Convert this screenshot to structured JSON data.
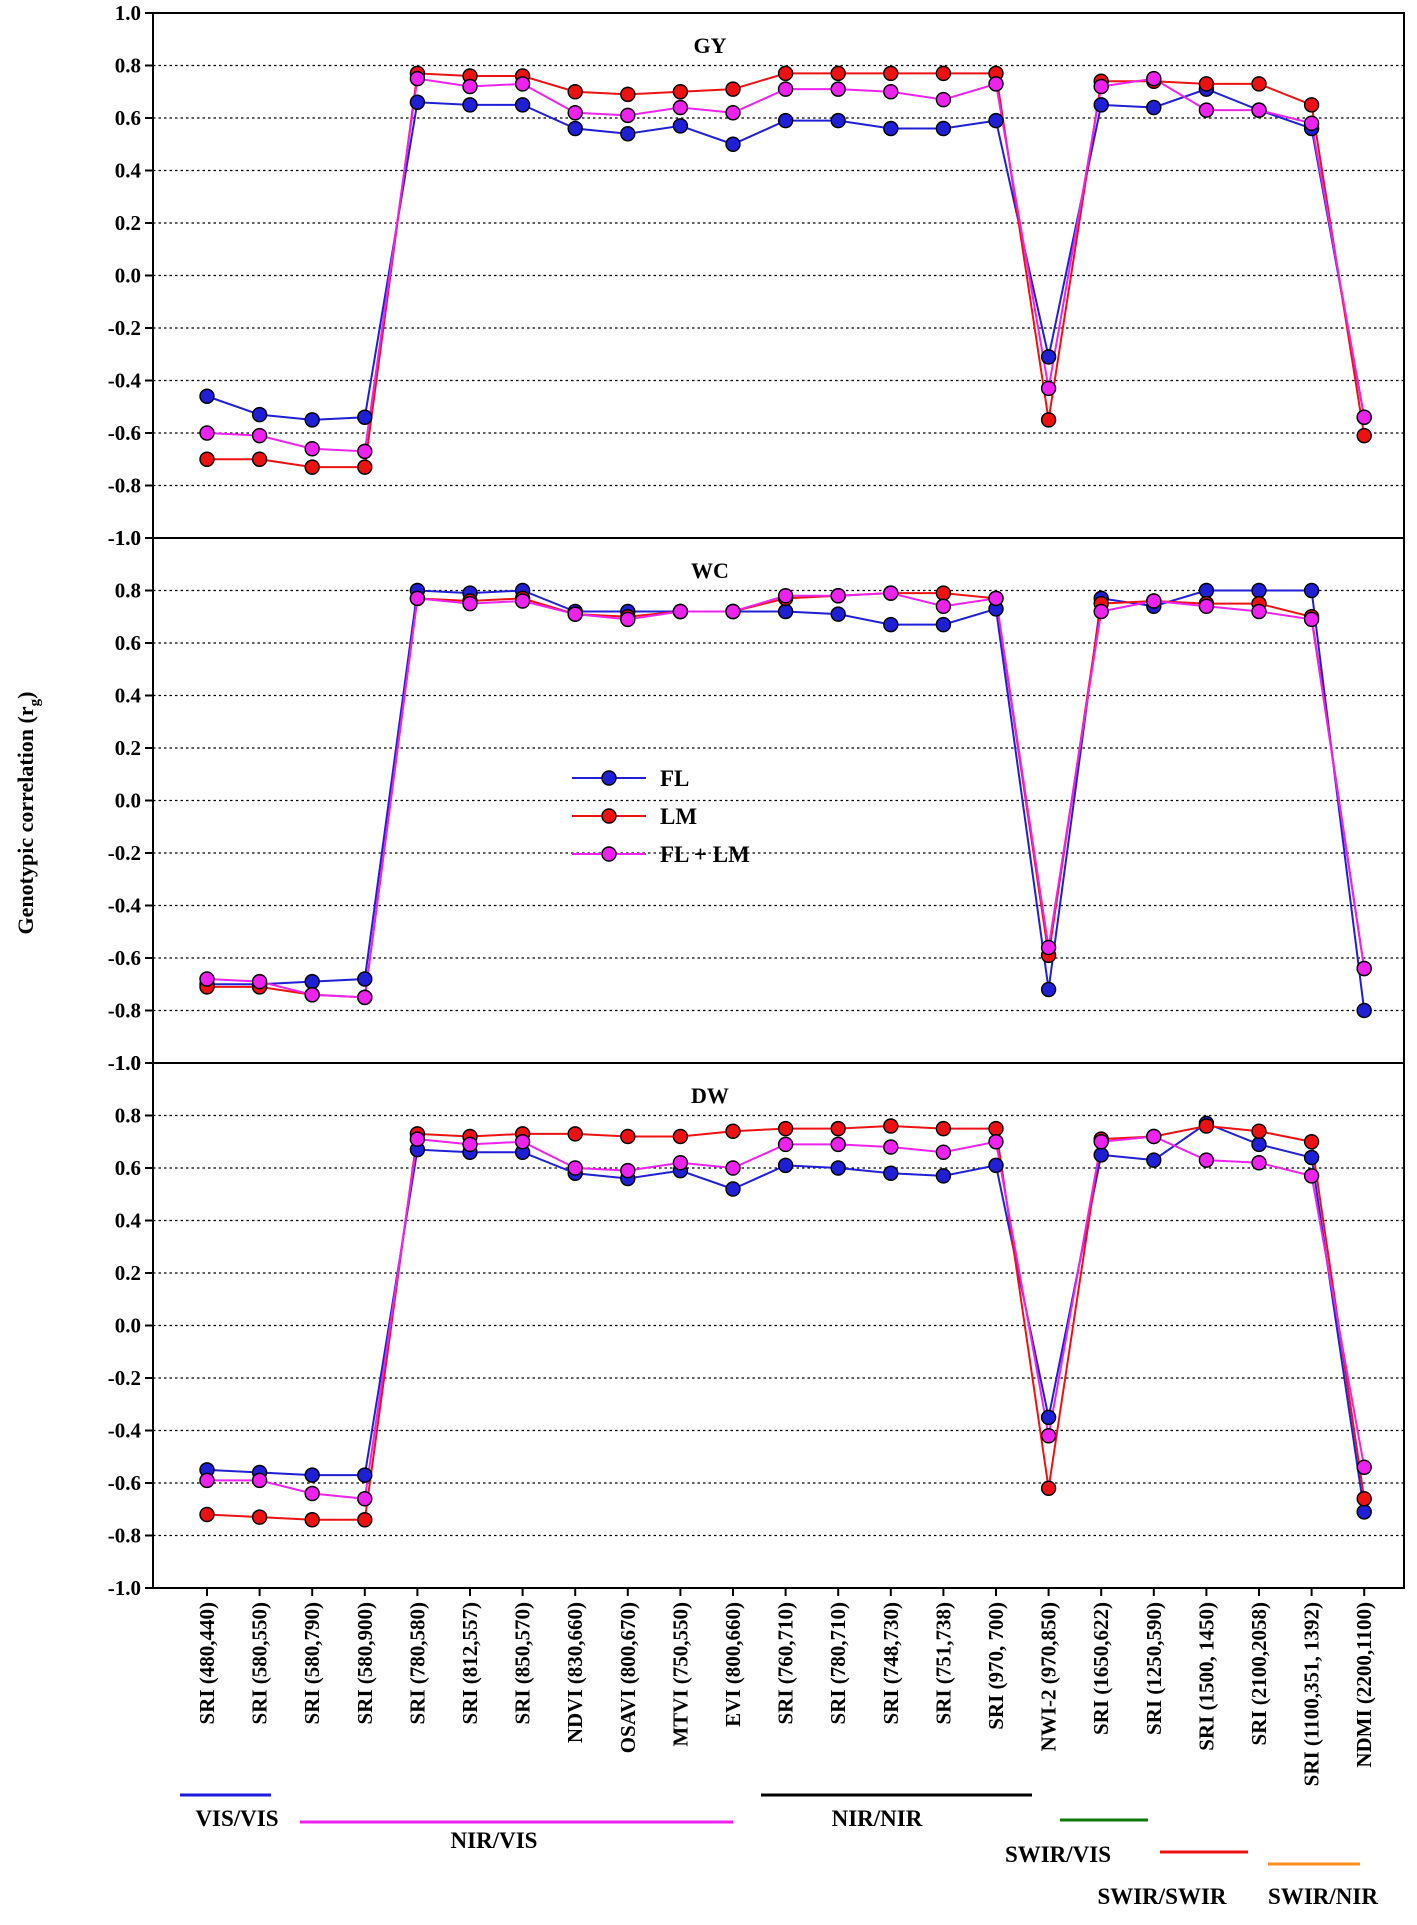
{
  "chart_data": {
    "type": "line",
    "ylabel": "Genotypic correlation (r",
    "ylabel_sub": "g",
    "ylabel_close": ")",
    "ylim": [
      -1.0,
      1.0
    ],
    "yticks": [
      "1.0",
      "0.8",
      "0.6",
      "0.4",
      "0.2",
      "0.0",
      "-0.2",
      "-0.4",
      "-0.6",
      "-0.8",
      "-1.0"
    ],
    "grid": true,
    "legend_position": "center",
    "categories": [
      "SRI (480,440)",
      "SRI (580,550)",
      "SRI (580,790)",
      "SRI (580,900)",
      "SRI (780,580)",
      "SRI (812,557)",
      "SRI (850,570)",
      "NDVI (830,660)",
      "OSAVI (800,670)",
      "MTVI (750,550)",
      "EVI (800,660)",
      "SRI (760,710)",
      "SRI (780,710)",
      "SRI (748,730)",
      "SRI (751,738)",
      "SRI (970, 700)",
      "NWI-2 (970,850)",
      "SRI (1650,622)",
      "SRI (1250,590)",
      "SRI (1500, 1450)",
      "SRI (2100,2058)",
      "SRI (1100,351, 1392)",
      "NDMI (2200,1100)"
    ],
    "series_style": [
      {
        "name": "FL",
        "color": "#1f1fd6"
      },
      {
        "name": "LM",
        "color": "#ee1111"
      },
      {
        "name": "FL + LM",
        "color": "#ee22ee"
      }
    ],
    "panels": [
      {
        "title": "GY",
        "series": [
          {
            "name": "FL",
            "values": [
              -0.46,
              -0.53,
              -0.55,
              -0.54,
              0.66,
              0.65,
              0.65,
              0.56,
              0.54,
              0.57,
              0.5,
              0.59,
              0.59,
              0.56,
              0.56,
              0.59,
              -0.31,
              0.65,
              0.64,
              0.71,
              0.63,
              0.56,
              -0.54
            ]
          },
          {
            "name": "LM",
            "values": [
              -0.7,
              -0.7,
              -0.73,
              -0.73,
              0.77,
              0.76,
              0.76,
              0.7,
              0.69,
              0.7,
              0.71,
              0.77,
              0.77,
              0.77,
              0.77,
              0.77,
              -0.55,
              0.74,
              0.74,
              0.73,
              0.73,
              0.65,
              -0.61
            ]
          },
          {
            "name": "FL + LM",
            "values": [
              -0.6,
              -0.61,
              -0.66,
              -0.67,
              0.75,
              0.72,
              0.73,
              0.62,
              0.61,
              0.64,
              0.62,
              0.71,
              0.71,
              0.7,
              0.67,
              0.73,
              -0.43,
              0.72,
              0.75,
              0.63,
              0.63,
              0.58,
              -0.54
            ]
          }
        ]
      },
      {
        "title": "WC",
        "series": [
          {
            "name": "FL",
            "values": [
              -0.7,
              -0.7,
              -0.69,
              -0.68,
              0.8,
              0.79,
              0.8,
              0.72,
              0.72,
              0.72,
              0.72,
              0.72,
              0.71,
              0.67,
              0.67,
              0.73,
              -0.72,
              0.77,
              0.74,
              0.8,
              0.8,
              0.8,
              -0.8
            ]
          },
          {
            "name": "LM",
            "values": [
              -0.71,
              -0.71,
              -0.74,
              -0.75,
              0.77,
              0.76,
              0.77,
              0.71,
              0.7,
              0.72,
              0.72,
              0.77,
              0.78,
              0.79,
              0.79,
              0.77,
              -0.59,
              0.75,
              0.76,
              0.75,
              0.75,
              0.7,
              -0.64
            ]
          },
          {
            "name": "FL + LM",
            "values": [
              -0.68,
              -0.69,
              -0.74,
              -0.75,
              0.77,
              0.75,
              0.76,
              0.71,
              0.69,
              0.72,
              0.72,
              0.78,
              0.78,
              0.79,
              0.74,
              0.77,
              -0.56,
              0.72,
              0.76,
              0.74,
              0.72,
              0.69,
              -0.64
            ]
          }
        ]
      },
      {
        "title": "DW",
        "series": [
          {
            "name": "FL",
            "values": [
              -0.55,
              -0.56,
              -0.57,
              -0.57,
              0.67,
              0.66,
              0.66,
              0.58,
              0.56,
              0.59,
              0.52,
              0.61,
              0.6,
              0.58,
              0.57,
              0.61,
              -0.35,
              0.65,
              0.63,
              0.77,
              0.69,
              0.64,
              -0.71
            ]
          },
          {
            "name": "LM",
            "values": [
              -0.72,
              -0.73,
              -0.74,
              -0.74,
              0.73,
              0.72,
              0.73,
              0.73,
              0.72,
              0.72,
              0.74,
              0.75,
              0.75,
              0.76,
              0.75,
              0.75,
              -0.62,
              0.71,
              0.72,
              0.76,
              0.74,
              0.7,
              -0.66
            ]
          },
          {
            "name": "FL + LM",
            "values": [
              -0.59,
              -0.59,
              -0.64,
              -0.66,
              0.71,
              0.69,
              0.7,
              0.6,
              0.59,
              0.62,
              0.6,
              0.69,
              0.69,
              0.68,
              0.66,
              0.7,
              -0.42,
              0.7,
              0.72,
              0.63,
              0.62,
              0.57,
              -0.54
            ]
          }
        ]
      }
    ],
    "groups": [
      {
        "label": "VIS/VIS",
        "color": "#1a1ae0",
        "start": 0,
        "end": 1
      },
      {
        "label": "NIR/VIS",
        "color": "#ee22ee",
        "start": 2,
        "end": 10
      },
      {
        "label": "NIR/NIR",
        "color": "#000000",
        "start": 11,
        "end": 16
      },
      {
        "label": "SWIR/VIS",
        "color": "#0a7a0a",
        "start": 17,
        "end": 18
      },
      {
        "label": "SWIR/SWIR",
        "color": "#ee1111",
        "start": 19,
        "end": 20
      },
      {
        "label": "SWIR/NIR",
        "color": "#ff8c1a",
        "start": 21,
        "end": 22
      }
    ]
  }
}
